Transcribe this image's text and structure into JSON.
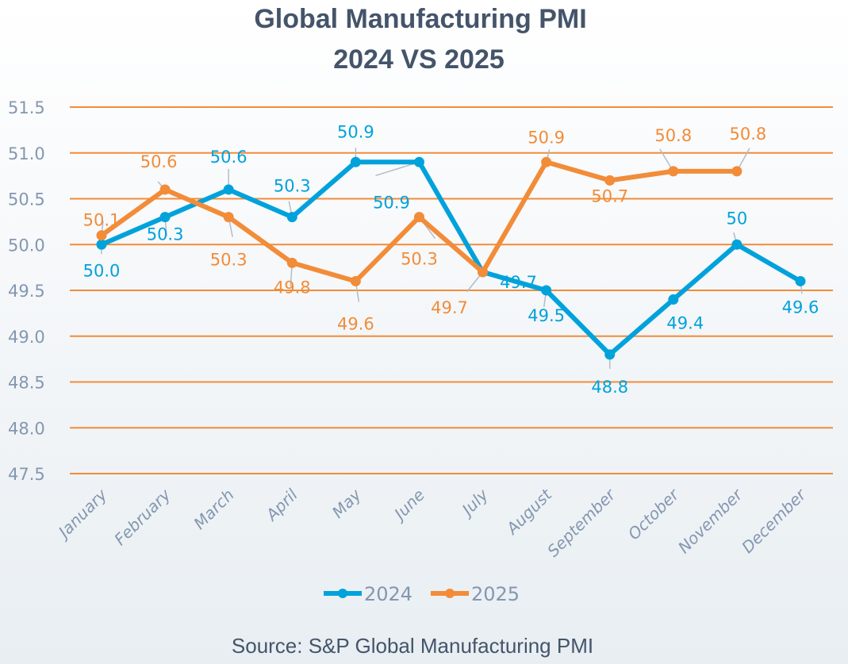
{
  "chart_data": {
    "type": "line",
    "title": "Global Manufacturing PMI",
    "subtitle": "2024 VS 2025",
    "xlabel": "",
    "ylabel": "",
    "ylim": [
      47.5,
      51.5
    ],
    "yticks": [
      "47.5",
      "48.0",
      "48.5",
      "49.0",
      "49.5",
      "50.0",
      "50.5",
      "51.0",
      "51.5"
    ],
    "grid": true,
    "grid_color": "#f28c38",
    "legend_position": "bottom",
    "categories": [
      "January",
      "February",
      "March",
      "April",
      "May",
      "June",
      "July",
      "August",
      "September",
      "October",
      "November",
      "December"
    ],
    "series": [
      {
        "name": "2024",
        "color": "#00a2db",
        "values": [
          50.0,
          50.3,
          50.6,
          50.3,
          50.9,
          50.9,
          49.7,
          49.5,
          48.8,
          49.4,
          50.0,
          49.6
        ],
        "labels": [
          "50.0",
          "50.3",
          "50.6",
          "50.3",
          "50.9",
          "50.9",
          "49.7",
          "49.5",
          "48.8",
          "49.4",
          "50",
          "49.6"
        ]
      },
      {
        "name": "2025",
        "color": "#f28c38",
        "values": [
          50.1,
          50.6,
          50.3,
          49.8,
          49.6,
          50.3,
          49.7,
          50.9,
          50.7,
          50.8,
          50.8,
          null
        ],
        "labels": [
          "50.1",
          "50.6",
          "50.3",
          "49.8",
          "49.6",
          "50.3",
          "49.7",
          "50.9",
          "50.7",
          "50.8",
          "50.8",
          null
        ]
      }
    ],
    "source": "Source: S&P Global Manufacturing PMI"
  }
}
